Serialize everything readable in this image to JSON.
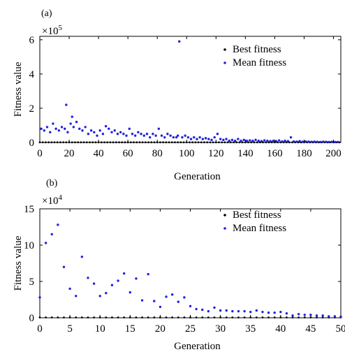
{
  "chart_data": [
    {
      "panel_label": "(a)",
      "type": "scatter",
      "xlabel": "Generation",
      "ylabel": "Fitness value",
      "y_multiplier": "×10",
      "y_multiplier_exp": "5",
      "xlim": [
        0,
        205
      ],
      "ylim": [
        0,
        6.2
      ],
      "xticks": [
        0,
        20,
        40,
        60,
        80,
        100,
        120,
        140,
        160,
        180,
        200
      ],
      "yticks": [
        0,
        2,
        4,
        6
      ],
      "legend_position": "top-right",
      "series": [
        {
          "name": "Best fitness",
          "color": "#000000",
          "x": [
            0,
            2,
            4,
            6,
            8,
            10,
            12,
            14,
            16,
            18,
            20,
            22,
            24,
            26,
            28,
            30,
            32,
            34,
            36,
            38,
            40,
            42,
            44,
            46,
            48,
            50,
            52,
            54,
            56,
            58,
            60,
            62,
            64,
            66,
            68,
            70,
            72,
            74,
            76,
            78,
            80,
            82,
            84,
            86,
            88,
            90,
            92,
            94,
            96,
            98,
            100,
            102,
            104,
            106,
            108,
            110,
            112,
            114,
            116,
            118,
            120,
            122,
            124,
            126,
            128,
            130,
            132,
            134,
            136,
            138,
            140,
            142,
            144,
            146,
            148,
            150,
            152,
            154,
            156,
            158,
            160,
            162,
            164,
            166,
            168,
            170,
            172,
            174,
            176,
            178,
            180,
            182,
            184,
            186,
            188,
            190,
            192,
            194,
            196,
            198,
            200,
            202,
            204
          ],
          "y": [
            0.01,
            0.01,
            0.01,
            0.01,
            0.01,
            0.01,
            0.01,
            0.01,
            0.01,
            0.01,
            0.01,
            0.01,
            0.01,
            0.01,
            0.01,
            0.01,
            0.01,
            0.01,
            0.01,
            0.01,
            0.01,
            0.01,
            0.01,
            0.01,
            0.01,
            0.01,
            0.01,
            0.01,
            0.01,
            0.01,
            0.01,
            0.01,
            0.01,
            0.01,
            0.01,
            0.01,
            0.01,
            0.01,
            0.01,
            0.01,
            0.01,
            0.01,
            0.01,
            0.01,
            0.01,
            0.01,
            0.01,
            0.01,
            0.01,
            0.01,
            0.01,
            0.01,
            0.01,
            0.01,
            0.01,
            0.01,
            0.01,
            0.01,
            0.01,
            0.01,
            0.01,
            0.01,
            0.01,
            0.01,
            0.01,
            0.01,
            0.01,
            0.01,
            0.01,
            0.01,
            0.01,
            0.01,
            0.01,
            0.01,
            0.01,
            0.01,
            0.01,
            0.01,
            0.01,
            0.01,
            0.01,
            0.01,
            0.01,
            0.01,
            0.01,
            0.01,
            0.01,
            0.01,
            0.01,
            0.01,
            0.01,
            0.01,
            0.01,
            0.01,
            0.01,
            0.01,
            0.01,
            0.01,
            0.01,
            0.01,
            0.01,
            0.01,
            0.01
          ]
        },
        {
          "name": "Mean fitness",
          "color": "#2020e0",
          "x": [
            1,
            3,
            5,
            7,
            9,
            11,
            13,
            15,
            17,
            18,
            19,
            21,
            22,
            23,
            25,
            27,
            29,
            31,
            33,
            35,
            37,
            39,
            41,
            43,
            45,
            47,
            49,
            51,
            53,
            55,
            57,
            59,
            61,
            63,
            65,
            67,
            69,
            71,
            73,
            75,
            77,
            79,
            81,
            83,
            85,
            87,
            89,
            91,
            93,
            94,
            95,
            97,
            99,
            101,
            103,
            105,
            107,
            109,
            111,
            113,
            115,
            117,
            119,
            121,
            123,
            125,
            127,
            129,
            131,
            133,
            135,
            137,
            139,
            141,
            143,
            145,
            147,
            149,
            151,
            153,
            155,
            157,
            159,
            161,
            163,
            165,
            167,
            169,
            171,
            173,
            175,
            177,
            179,
            181,
            183,
            185,
            187,
            189,
            191,
            193,
            195,
            197,
            199,
            201,
            203
          ],
          "y": [
            0.8,
            0.7,
            0.9,
            0.6,
            1.1,
            0.8,
            0.7,
            0.9,
            0.8,
            2.2,
            0.6,
            1.1,
            1.5,
            0.9,
            1.2,
            0.8,
            0.7,
            0.9,
            0.5,
            0.7,
            0.6,
            0.4,
            0.7,
            0.5,
            0.95,
            0.8,
            0.6,
            0.7,
            0.5,
            0.6,
            0.5,
            0.4,
            0.8,
            0.5,
            0.4,
            0.6,
            0.5,
            0.4,
            0.5,
            0.3,
            0.5,
            0.4,
            0.8,
            0.4,
            0.3,
            0.5,
            0.4,
            0.3,
            0.3,
            0.4,
            5.9,
            0.3,
            0.4,
            0.3,
            0.2,
            0.3,
            0.2,
            0.3,
            0.2,
            0.25,
            0.2,
            0.15,
            0.3,
            0.5,
            0.2,
            0.15,
            0.2,
            0.1,
            0.15,
            0.1,
            0.2,
            0.1,
            0.15,
            0.1,
            0.12,
            0.1,
            0.15,
            0.1,
            0.08,
            0.12,
            0.1,
            0.08,
            0.1,
            0.08,
            0.12,
            0.06,
            0.1,
            0.08,
            0.3,
            0.06,
            0.05,
            0.08,
            0.04,
            0.06,
            0.05,
            0.04,
            0.05,
            0.04,
            0.03,
            0.05,
            0.04,
            0.03,
            0.04,
            0.03,
            0.03
          ]
        }
      ]
    },
    {
      "panel_label": "(b)",
      "type": "scatter",
      "xlabel": "Generation",
      "ylabel": "Fitness value",
      "y_multiplier": "×10",
      "y_multiplier_exp": "4",
      "xlim": [
        0,
        50
      ],
      "ylim": [
        0,
        15
      ],
      "xticks": [
        0,
        5,
        10,
        15,
        20,
        25,
        30,
        35,
        40,
        45,
        50
      ],
      "yticks": [
        0,
        5,
        10,
        15
      ],
      "legend_position": "top-right",
      "series": [
        {
          "name": "Best fitness",
          "color": "#000000",
          "x": [
            0,
            1,
            2,
            3,
            4,
            5,
            6,
            7,
            8,
            9,
            10,
            11,
            12,
            13,
            14,
            15,
            16,
            17,
            18,
            19,
            20,
            21,
            22,
            23,
            24,
            25,
            26,
            27,
            28,
            29,
            30,
            31,
            32,
            33,
            34,
            35,
            36,
            37,
            38,
            39,
            40,
            41,
            42,
            43,
            44,
            45,
            46,
            47,
            48,
            49,
            50
          ],
          "y": [
            0.05,
            0.05,
            0.05,
            0.05,
            0.05,
            0.05,
            0.05,
            0.05,
            0.05,
            0.05,
            0.05,
            0.05,
            0.05,
            0.05,
            0.05,
            0.05,
            0.05,
            0.05,
            0.05,
            0.05,
            0.05,
            0.05,
            0.05,
            0.05,
            0.05,
            0.05,
            0.05,
            0.05,
            0.05,
            0.05,
            0.05,
            0.05,
            0.05,
            0.05,
            0.05,
            0.05,
            0.05,
            0.05,
            0.05,
            0.05,
            0.05,
            0.05,
            0.05,
            0.05,
            0.05,
            0.05,
            0.05,
            0.05,
            0.05,
            0.05,
            0.05
          ]
        },
        {
          "name": "Mean fitness",
          "color": "#2020e0",
          "x": [
            0,
            1,
            2,
            3,
            4,
            5,
            6,
            7,
            8,
            9,
            10,
            11,
            12,
            13,
            14,
            15,
            16,
            17,
            18,
            19,
            20,
            21,
            22,
            23,
            24,
            25,
            26,
            27,
            28,
            29,
            30,
            31,
            32,
            33,
            34,
            35,
            36,
            37,
            38,
            39,
            40,
            41,
            42,
            43,
            44,
            45,
            46,
            47,
            48,
            49,
            50
          ],
          "y": [
            2.8,
            10.3,
            11.5,
            12.8,
            7.0,
            4.0,
            3.0,
            8.4,
            5.5,
            4.7,
            3.0,
            3.4,
            4.5,
            5.1,
            6.1,
            3.5,
            5.4,
            2.4,
            6.0,
            2.3,
            1.5,
            2.9,
            3.2,
            2.2,
            2.8,
            1.6,
            1.2,
            1.1,
            0.9,
            1.4,
            1.0,
            1.0,
            0.9,
            0.9,
            0.9,
            0.8,
            1.0,
            0.8,
            0.7,
            0.7,
            0.8,
            0.6,
            0.3,
            0.5,
            0.4,
            0.4,
            0.3,
            0.3,
            0.2,
            0.2,
            0.15
          ]
        }
      ]
    }
  ]
}
